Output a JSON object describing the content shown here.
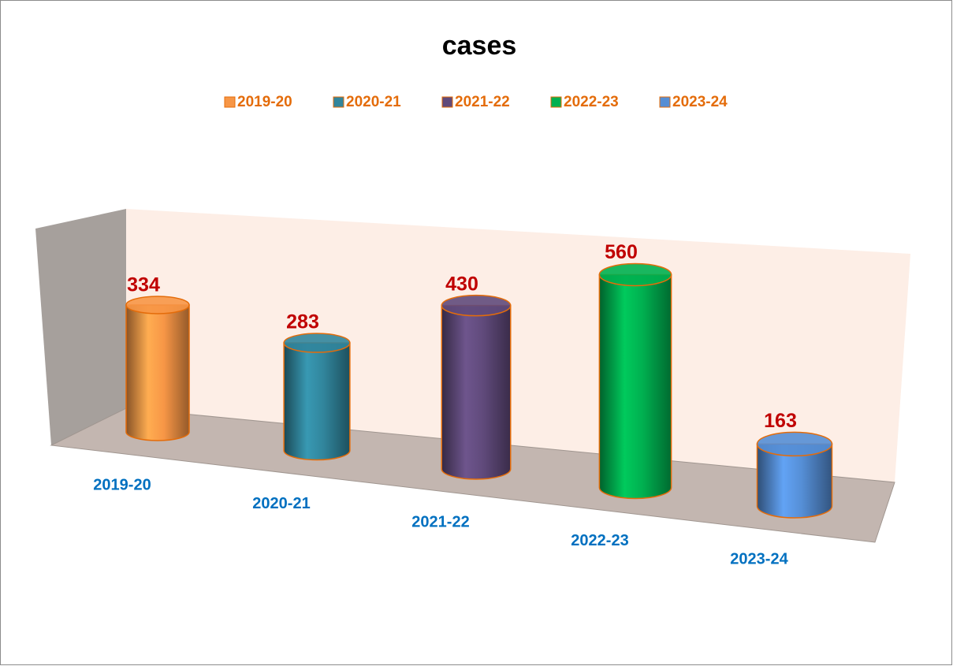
{
  "chart_data": {
    "type": "bar",
    "title": "cases",
    "categories": [
      "2019-20",
      "2020-21",
      "2021-22",
      "2022-23",
      "2023-24"
    ],
    "values": [
      334,
      283,
      430,
      560,
      163
    ],
    "colors": [
      "#f79646",
      "#31859c",
      "#604a7b",
      "#00b050",
      "#558ed5"
    ],
    "legend": "top"
  }
}
